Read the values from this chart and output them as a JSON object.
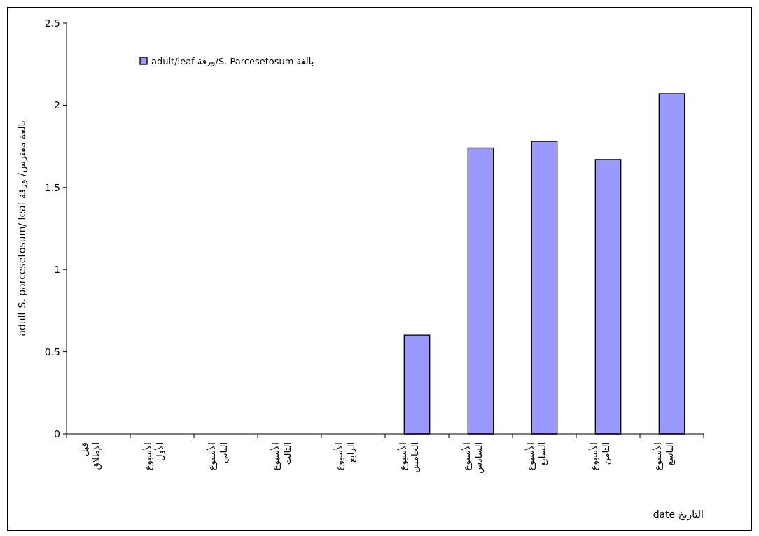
{
  "chart_data": {
    "type": "bar",
    "xlabel": "التاريخ date",
    "ylabel": "بالغة مفترس/ ورقة adult S. parcesetosum/ leaf",
    "categories": [
      "قبل الإطلاق",
      "الأسبوع الأول",
      "الأسبوع الثاني",
      "الأسبوع الثالث",
      "الأسبوع الرابع",
      "الأسبوع الخامس",
      "الأسبوع السادس",
      "الأسبوع السابع",
      "الأسبوع الثامن",
      "الأسبوع التاسع"
    ],
    "series": [
      {
        "name": "بالغة S. Parcesetosum/ورقة adult/leaf",
        "color": "#9999ff",
        "values": [
          0,
          0,
          0,
          0,
          0,
          0.6,
          1.74,
          1.78,
          1.67,
          2.07
        ]
      }
    ],
    "ylim": [
      0,
      2.5
    ],
    "yticks": [
      0,
      0.5,
      1,
      1.5,
      2,
      2.5
    ],
    "grid": false,
    "legend": "top left"
  }
}
